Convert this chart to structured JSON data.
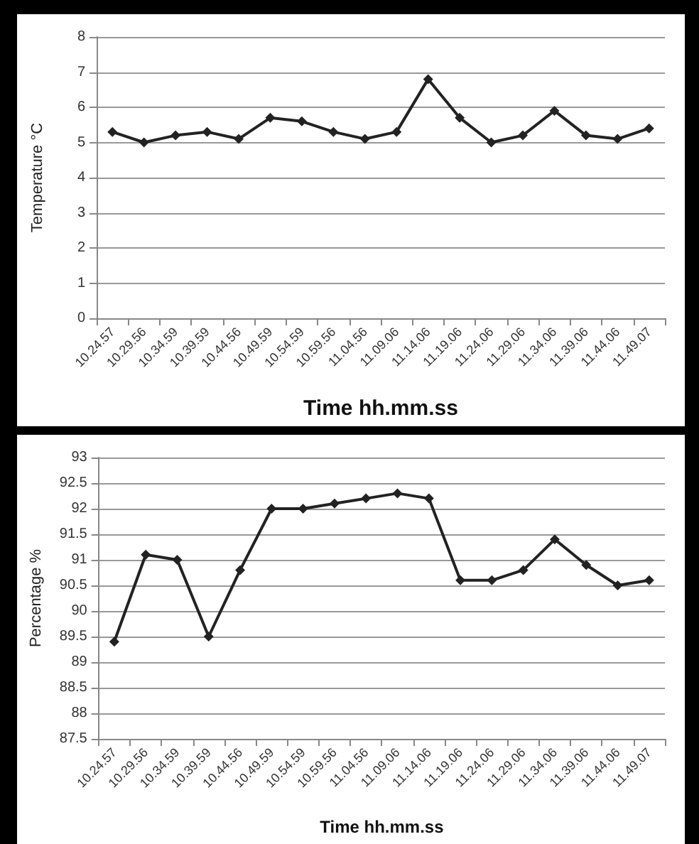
{
  "chart_data": [
    {
      "type": "line",
      "xlabel": "Time hh.mm.ss",
      "ylabel": "Temperature °C",
      "categories": [
        "10.24.57",
        "10.29.56",
        "10.34.59",
        "10.39.59",
        "10.44.56",
        "10.49.59",
        "10.54.59",
        "10.59.56",
        "11.04.56",
        "11.09.06",
        "11.14.06",
        "11.19.06",
        "11.24.06",
        "11.29.06",
        "11.34.06",
        "11.39.06",
        "11.44.06",
        "11.49.07"
      ],
      "series": [
        {
          "color": "#222222",
          "values": [
            5.3,
            5.0,
            5.2,
            5.3,
            5.1,
            5.7,
            5.6,
            5.3,
            5.1,
            5.3,
            6.8,
            5.7,
            5.0,
            5.2,
            5.9,
            5.2,
            5.1,
            5.4
          ]
        }
      ],
      "ylim": [
        0,
        8
      ],
      "yticks": [
        0,
        1,
        2,
        3,
        4,
        5,
        6,
        7,
        8
      ],
      "grid": "y",
      "marker": "diamond",
      "line_style": "solid"
    },
    {
      "type": "line",
      "xlabel": "Time hh.mm.ss",
      "ylabel": "Percentage %",
      "categories": [
        "10.24.57",
        "10.29.56",
        "10.34.59",
        "10.39.59",
        "10.44.56",
        "10.49.59",
        "10.54.59",
        "10.59.56",
        "11.04.56",
        "11.09.06",
        "11.14.06",
        "11.19.06",
        "11.24.06",
        "11.29.06",
        "11.34.06",
        "11.39.06",
        "11.44.06",
        "11.49.07"
      ],
      "series": [
        {
          "color": "#222222",
          "values": [
            89.4,
            91.1,
            91.0,
            89.5,
            90.8,
            92.0,
            92.0,
            92.1,
            92.2,
            92.3,
            92.2,
            90.6,
            90.6,
            90.8,
            91.4,
            90.9,
            90.5,
            90.6
          ]
        }
      ],
      "ylim": [
        87.5,
        93
      ],
      "yticks": [
        87.5,
        88,
        88.5,
        89,
        89.5,
        90,
        90.5,
        91,
        91.5,
        92,
        92.5,
        93
      ],
      "grid": "y",
      "marker": "diamond",
      "line_style": "solid"
    }
  ]
}
